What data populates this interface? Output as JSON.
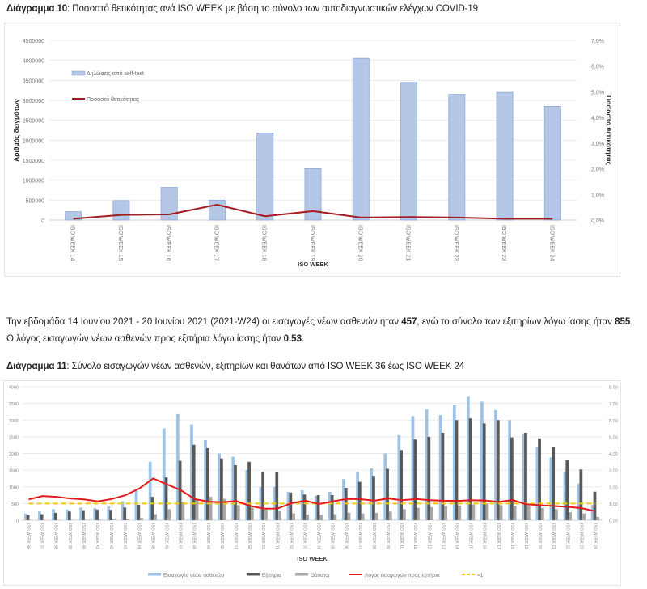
{
  "chart1_caption": {
    "label": "Διάγραμμα 10",
    "text": ": Ποσοστό θετικότητας ανά ISO WEEK με βάση το σύνολο των αυτοδιαγνωστικών ελέγχων COVID-19"
  },
  "paragraph": {
    "part1": "Την εβδομάδα 14 Ιουνίου 2021 - 20 Ιουνίου 2021 (2021-W24) οι εισαγωγές νέων ασθενών ήταν ",
    "admissions": "457",
    "part2": ", ενώ το σύνολο των εξιτηρίων λόγω ίασης ήταν ",
    "discharges": "855",
    "part3": ". Ο λόγος εισαγωγών νέων ασθενών προς εξιτήρια λόγω ίασης ήταν ",
    "ratio": "0.53",
    "part4": "."
  },
  "chart2_caption": {
    "label": "Διάγραμμα 11",
    "text": ": Σύνολο εισαγωγών νέων ασθενών, εξιτηρίων και θανάτων από ISO WEEK 36 έως ISO WEEK 24"
  },
  "chart_data": [
    {
      "type": "bar",
      "title": "Ποσοστό θετικότητας ανά ISO WEEK με βάση το σύνολο των αυτοδιαγνωστικών ελέγχων COVID-19",
      "xlabel": "ISO WEEK",
      "ylabel": "Αριθμός δειγμάτων",
      "y2label": "Ποσοστό θετικότητας",
      "categories": [
        "ISO WEEK 14",
        "ISO WEEK 15",
        "ISO WEEK 16",
        "ISO WEEK 17",
        "ISO WEEK 18",
        "ISO WEEK 19",
        "ISO WEEK 20",
        "ISO WEEK 21",
        "ISO WEEK 22",
        "ISO WEEK 23",
        "ISO WEEK 24"
      ],
      "series": [
        {
          "name": "Δηλώσεις από self-test",
          "kind": "bar",
          "axis": "left",
          "color": "#b4c7e7",
          "values": [
            210000,
            490000,
            820000,
            500000,
            2180000,
            1290000,
            4050000,
            3450000,
            3150000,
            3200000,
            2850000
          ]
        },
        {
          "name": "Ποσοστό θετικότητας",
          "kind": "line",
          "axis": "right",
          "color": "#a11d21",
          "values": [
            0.05,
            0.2,
            0.22,
            0.6,
            0.15,
            0.35,
            0.1,
            0.12,
            0.1,
            0.05,
            0.05
          ]
        }
      ],
      "ylim": [
        0,
        4500000
      ],
      "yticks": [
        0,
        500000,
        1000000,
        1500000,
        2000000,
        2500000,
        3000000,
        3500000,
        4000000,
        4500000
      ],
      "ytick_labels": [
        "0",
        "500000",
        "1000000",
        "1500000",
        "2000000",
        "2500000",
        "3000000",
        "3500000",
        "4000000",
        "4500000"
      ],
      "y2lim": [
        0,
        7
      ],
      "y2ticks": [
        0,
        1,
        2,
        3,
        4,
        5,
        6,
        7
      ],
      "y2tick_labels": [
        "0,0%",
        "1,0%",
        "2,0%",
        "3,0%",
        "4,0%",
        "5,0%",
        "6,0%",
        "7,0%"
      ],
      "grid": true,
      "legend": "top-left (inside)"
    },
    {
      "type": "bar",
      "title": "Σύνολο εισαγωγών νέων ασθενών, εξιτηρίων και θανάτων από ISO WEEK 36 έως ISO WEEK 24",
      "xlabel": "ISO WEEK",
      "categories": [
        "ISO WEEK 36",
        "ISO WEEK 37",
        "ISO WEEK 38",
        "ISO WEEK 39",
        "ISO WEEK 40",
        "ISO WEEK 41",
        "ISO WEEK 42",
        "ISO WEEK 43",
        "ISO WEEK 44",
        "ISO WEEK 45",
        "ISO WEEK 46",
        "ISO WEEK 47",
        "ISO WEEK 48",
        "ISO WEEK 49",
        "ISO WEEK 50",
        "ISO WEEK 51",
        "ISO WEEK 52",
        "ISO WEEK 53",
        "ISO WEEK 01",
        "ISO WEEK 02",
        "ISO WEEK 03",
        "ISO WEEK 04",
        "ISO WEEK 05",
        "ISO WEEK 06",
        "ISO WEEK 07",
        "ISO WEEK 08",
        "ISO WEEK 09",
        "ISO WEEK 10",
        "ISO WEEK 11",
        "ISO WEEK 12",
        "ISO WEEK 13",
        "ISO WEEK 14",
        "ISO WEEK 15",
        "ISO WEEK 16",
        "ISO WEEK 17",
        "ISO WEEK 18",
        "ISO WEEK 19",
        "ISO WEEK 20",
        "ISO WEEK 21",
        "ISO WEEK 22",
        "ISO WEEK 23",
        "ISO WEEK 24"
      ],
      "series": [
        {
          "name": "Εισαγωγές νέων ασθενών",
          "kind": "bar",
          "axis": "left",
          "color": "#9dc3e6",
          "values": [
            200,
            260,
            330,
            320,
            380,
            360,
            410,
            570,
            930,
            1750,
            2750,
            3180,
            2870,
            2400,
            2000,
            1900,
            1500,
            1000,
            1000,
            850,
            900,
            730,
            850,
            1230,
            1450,
            1550,
            2000,
            2550,
            3120,
            3320,
            3150,
            3450,
            3700,
            3550,
            3300,
            3000,
            2600,
            2200,
            1880,
            1450,
            1100,
            457
          ]
        },
        {
          "name": "Εξιτήρια",
          "kind": "bar",
          "axis": "left",
          "color": "#595959",
          "values": [
            160,
            180,
            220,
            260,
            300,
            320,
            310,
            380,
            460,
            700,
            1280,
            1780,
            2260,
            2160,
            1850,
            1650,
            1750,
            1450,
            1430,
            830,
            770,
            750,
            750,
            970,
            1150,
            1330,
            1540,
            2100,
            2420,
            2500,
            2620,
            3000,
            3050,
            2900,
            3000,
            2480,
            2620,
            2450,
            2200,
            1800,
            1520,
            855
          ]
        },
        {
          "name": "Θάνατοι",
          "kind": "bar",
          "axis": "left",
          "color": "#a6a6a6",
          "values": [
            5,
            5,
            10,
            10,
            15,
            15,
            20,
            40,
            70,
            180,
            330,
            550,
            640,
            700,
            640,
            450,
            380,
            320,
            280,
            200,
            170,
            160,
            180,
            220,
            200,
            220,
            260,
            330,
            370,
            390,
            420,
            440,
            470,
            500,
            450,
            430,
            440,
            370,
            330,
            240,
            200,
            100
          ]
        },
        {
          "name": "Λόγος εισαγωγών προς εξιτήρια",
          "kind": "line",
          "axis": "right",
          "color": "#e31a1c",
          "values": [
            1.25,
            1.45,
            1.4,
            1.3,
            1.25,
            1.13,
            1.27,
            1.5,
            1.9,
            2.5,
            2.15,
            1.8,
            1.27,
            1.11,
            1.08,
            1.15,
            0.86,
            0.69,
            0.7,
            1.02,
            1.17,
            0.97,
            1.13,
            1.27,
            1.26,
            1.17,
            1.3,
            1.2,
            1.27,
            1.2,
            1.17,
            1.16,
            1.2,
            1.18,
            1.1,
            1.21,
            0.95,
            0.9,
            0.85,
            0.8,
            0.72,
            0.53
          ]
        },
        {
          "name": "=1",
          "kind": "line-dashed",
          "axis": "right",
          "color": "#f2c80f",
          "values": [
            1,
            1,
            1,
            1,
            1,
            1,
            1,
            1,
            1,
            1,
            1,
            1,
            1,
            1,
            1,
            1,
            1,
            1,
            1,
            1,
            1,
            1,
            1,
            1,
            1,
            1,
            1,
            1,
            1,
            1,
            1,
            1,
            1,
            1,
            1,
            1,
            1,
            1,
            1,
            1,
            1,
            1
          ]
        }
      ],
      "ylim": [
        0,
        4000
      ],
      "yticks": [
        0,
        500,
        1000,
        1500,
        2000,
        2500,
        3000,
        3500,
        4000
      ],
      "ytick_labels": [
        "0",
        "500",
        "1000",
        "1500",
        "2000",
        "2500",
        "3000",
        "3500",
        "4000"
      ],
      "y2lim": [
        0,
        8
      ],
      "y2ticks": [
        0,
        1,
        2,
        3,
        4,
        5,
        6,
        7,
        8
      ],
      "y2tick_labels": [
        "0,00",
        "1,00",
        "2,00",
        "3,00",
        "4,00",
        "5,00",
        "6,00",
        "7,00",
        "8,00"
      ],
      "grid": true,
      "legend": "bottom"
    }
  ]
}
